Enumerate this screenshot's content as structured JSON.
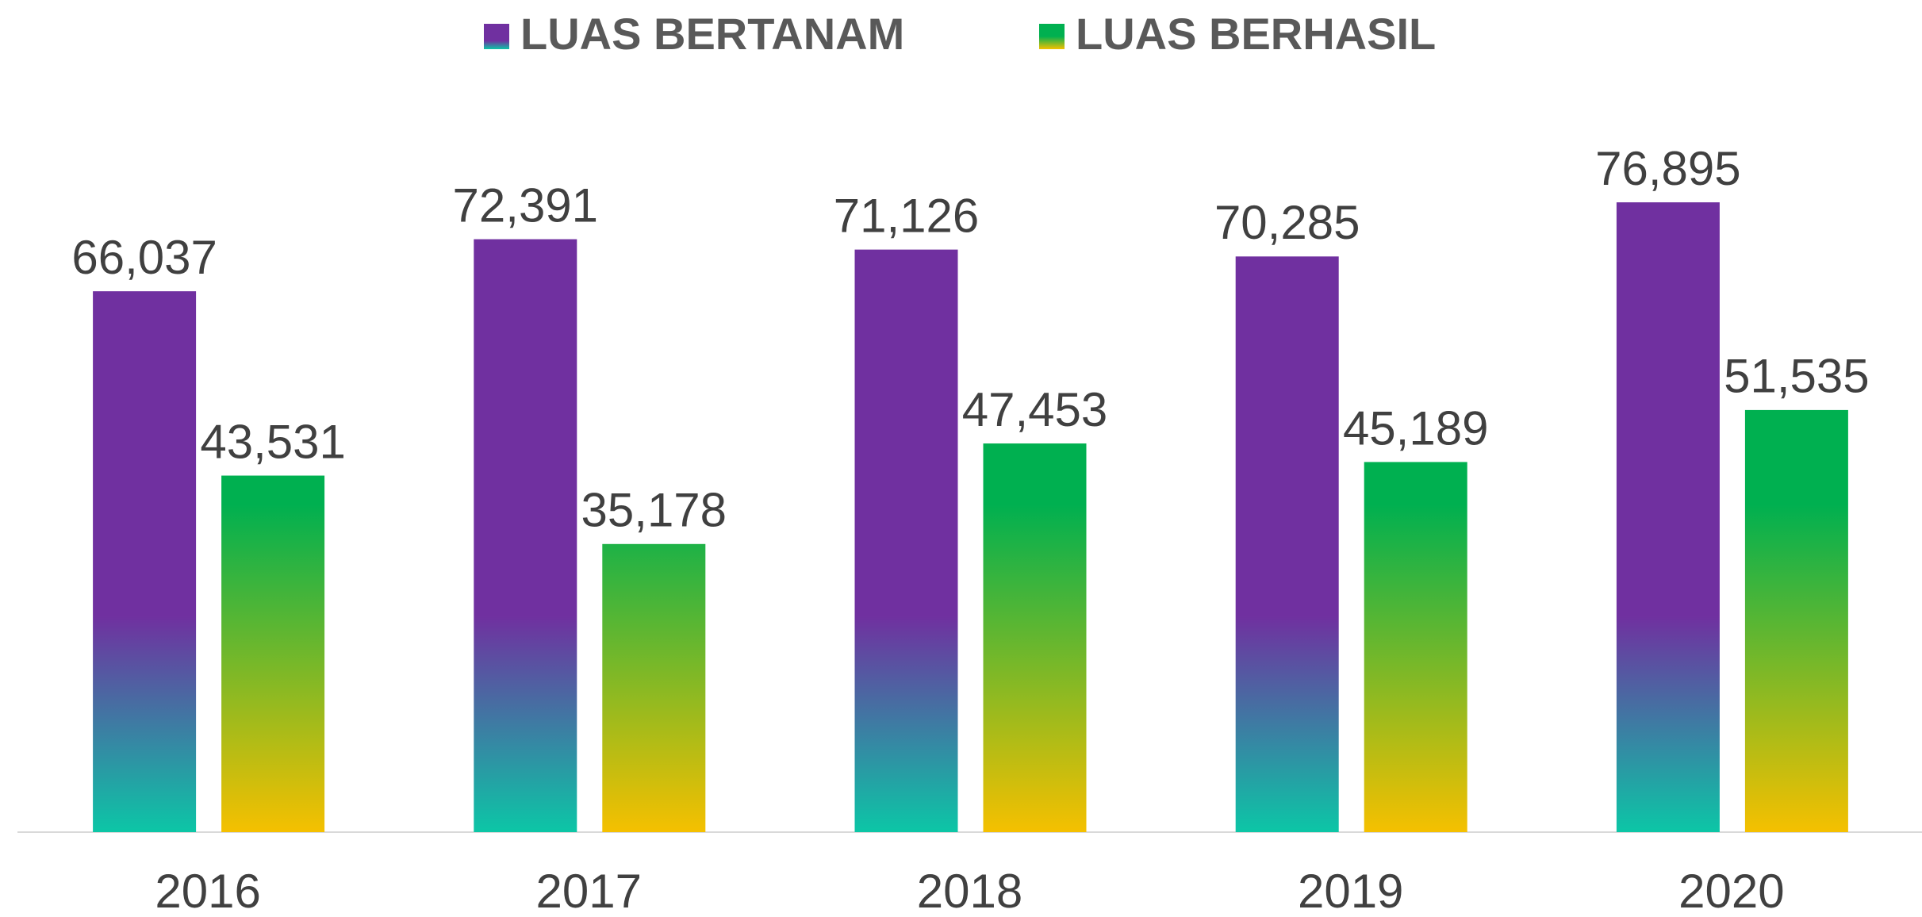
{
  "chart_data": {
    "type": "bar",
    "categories": [
      "2016",
      "2017",
      "2018",
      "2019",
      "2020"
    ],
    "series": [
      {
        "name": "LUAS BERTANAM",
        "color": "#7030a0",
        "gradient": [
          "#7030a0",
          "#0cc6a6"
        ],
        "values": [
          66037,
          72391,
          71126,
          70285,
          76895
        ],
        "value_labels": [
          "66,037",
          "72,391",
          "71,126",
          "70,285",
          "76,895"
        ]
      },
      {
        "name": "LUAS BERHASIL",
        "color": "#00b050",
        "gradient": [
          "#00b050",
          "#f5c000"
        ],
        "values": [
          43531,
          35178,
          47453,
          45189,
          51535
        ],
        "value_labels": [
          "43,531",
          "35,178",
          "47,453",
          "45,189",
          "51,535"
        ]
      }
    ],
    "ylim": [
      0,
      80000
    ],
    "legend": "top"
  }
}
